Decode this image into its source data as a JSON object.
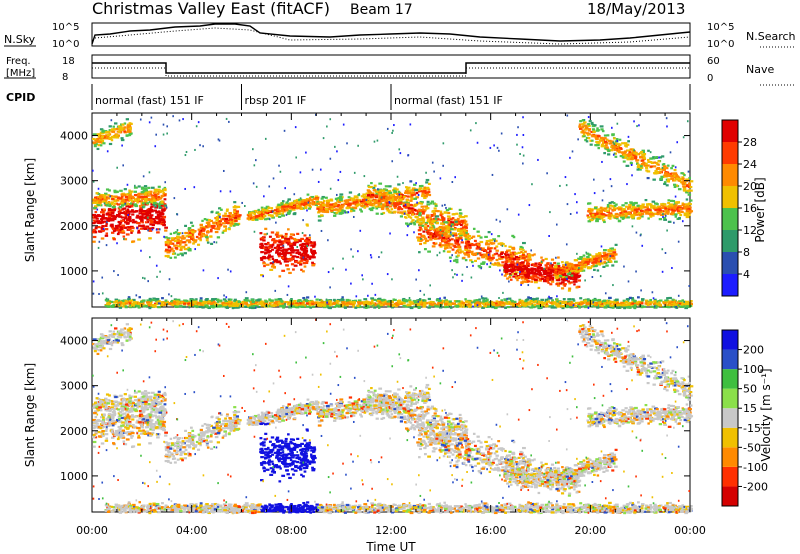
{
  "header": {
    "title": "Christmas Valley East (fitACF)",
    "beam": "Beam 17",
    "date": "18/May/2013"
  },
  "small_panels": {
    "nsky_label": "N.Sky",
    "nsky_ticks": [
      "10^5",
      "10^0"
    ],
    "nsearch_label": "N.Search",
    "nsearch_ticks": [
      "10^5",
      "10^0"
    ],
    "freq_label_1": "Freq.",
    "freq_label_2": "[MHz]",
    "freq_ticks": [
      "18",
      "8"
    ],
    "nave_label": "Nave",
    "nave_ticks": [
      "60",
      "0"
    ],
    "cpid_label": "CPID"
  },
  "cpid_segments": [
    {
      "label": "normal (fast) 151 IF",
      "start": 0,
      "end": 6
    },
    {
      "label": "rbsp 201 IF",
      "start": 6,
      "end": 12
    },
    {
      "label": "normal (fast) 151 IF",
      "start": 12,
      "end": 24
    }
  ],
  "chart_data": [
    {
      "type": "heatmap",
      "ylabel": "Slant Range [km]",
      "yticks": [
        "1000",
        "2000",
        "3000",
        "4000"
      ],
      "ylim": [
        200,
        4500
      ],
      "xlim": [
        0,
        24
      ],
      "colorbar_label": "Power [dB]",
      "colorbar_ticks": [
        "4",
        "8",
        "12",
        "16",
        "20",
        "24",
        "28"
      ],
      "colors": [
        "#1c1cff",
        "#2a4fb0",
        "#2e9a6a",
        "#4cc24c",
        "#f0c000",
        "#ff8a00",
        "#ff3b00",
        "#e00000"
      ]
    },
    {
      "type": "heatmap",
      "ylabel": "Slant Range [km]",
      "yticks": [
        "1000",
        "2000",
        "3000",
        "4000"
      ],
      "ylim": [
        200,
        4500
      ],
      "xlim": [
        0,
        24
      ],
      "xlabel": "Time UT",
      "xticks": [
        "00:00",
        "04:00",
        "08:00",
        "12:00",
        "16:00",
        "20:00",
        "00:00"
      ],
      "colorbar_label": "Velocity [m s⁻¹]",
      "colorbar_ticks": [
        "200",
        "100",
        "50",
        "15",
        "-15",
        "-50",
        "-100",
        "-200"
      ],
      "colors": [
        "#1010e0",
        "#2a50c8",
        "#3fbf3f",
        "#8be04a",
        "#c8c8c8",
        "#f0c000",
        "#ff8a00",
        "#ff3000",
        "#d40000"
      ]
    }
  ]
}
